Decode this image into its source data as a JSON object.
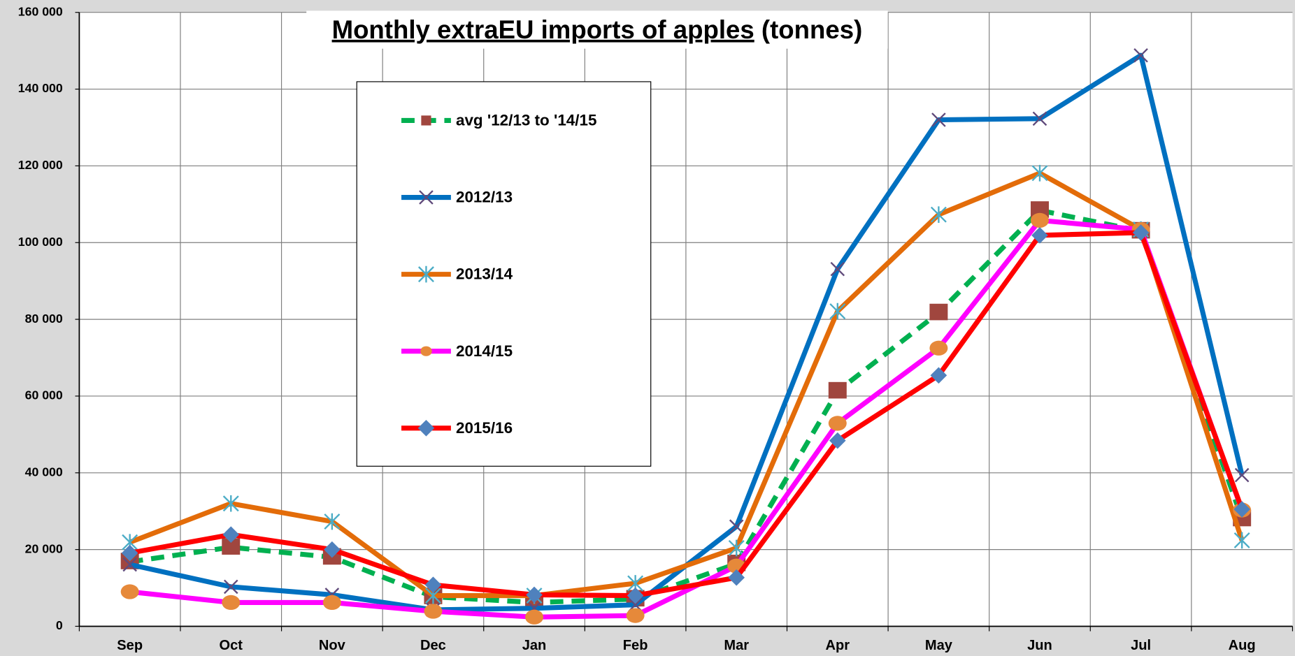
{
  "chart_data": {
    "type": "line",
    "title": "Monthly extraEU imports of apples",
    "subtitle": "(tonnes)",
    "categories": [
      "Sep",
      "Oct",
      "Nov",
      "Dec",
      "Jan",
      "Feb",
      "Mar",
      "Apr",
      "May",
      "Jun",
      "Jul",
      "Aug"
    ],
    "ylim": [
      0,
      160000
    ],
    "yticks": [
      {
        "value": 0,
        "label": "0"
      },
      {
        "value": 20000,
        "label": "20 000"
      },
      {
        "value": 40000,
        "label": "40 000"
      },
      {
        "value": 60000,
        "label": "60 000"
      },
      {
        "value": 80000,
        "label": "80 000"
      },
      {
        "value": 100000,
        "label": "100 000"
      },
      {
        "value": 120000,
        "label": "120 000"
      },
      {
        "value": 140000,
        "label": "140 000"
      },
      {
        "value": 160000,
        "label": "160 000"
      }
    ],
    "grid": true,
    "legend": "upper left",
    "series": [
      {
        "name": "avg '12/13 to '14/15",
        "color": "#00b050",
        "dash": true,
        "marker": "square",
        "marker_color": "#a0463e",
        "values": [
          16800,
          20600,
          18000,
          7700,
          6200,
          7100,
          16300,
          61300,
          81700,
          108400,
          103000,
          28000
        ]
      },
      {
        "name": "2012/13",
        "color": "#0070c0",
        "marker": "x",
        "marker_color": "#604a7b",
        "values": [
          16100,
          10300,
          8200,
          4300,
          4700,
          5600,
          26000,
          93100,
          132000,
          132300,
          148800,
          39400
        ]
      },
      {
        "name": "2013/14",
        "color": "#e36c09",
        "marker": "asterisk",
        "marker_color": "#4bacc6",
        "values": [
          21900,
          32000,
          27300,
          8000,
          8000,
          11200,
          20400,
          82100,
          107300,
          118100,
          103400,
          22400
        ]
      },
      {
        "name": "2014/15",
        "color": "#ff00ff",
        "marker": "circle",
        "marker_color": "#e6893a",
        "values": [
          9000,
          6200,
          6200,
          3900,
          2400,
          2800,
          15700,
          52900,
          72500,
          105800,
          103400,
          30300
        ]
      },
      {
        "name": "2015/16",
        "color": "#ff0000",
        "marker": "diamond",
        "marker_color": "#4f81bd",
        "values": [
          19100,
          23900,
          20000,
          10800,
          8200,
          8000,
          12700,
          48400,
          65400,
          101900,
          102600,
          30500
        ]
      }
    ]
  }
}
